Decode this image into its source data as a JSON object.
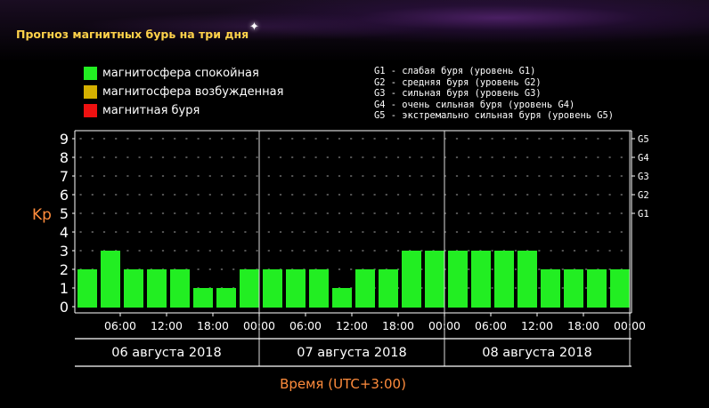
{
  "page": {
    "title": "Прогноз магнитных бурь на три дня",
    "legend": [
      {
        "label": "магнитосфера спокойная",
        "color": "#22ee22"
      },
      {
        "label": "магнитосфера возбужденная",
        "color": "#d4b000"
      },
      {
        "label": "магнитная буря",
        "color": "#ee1111"
      }
    ],
    "g_legend": [
      "G1 - слабая буря (уровень G1)",
      "G2 - средняя буря (уровень G2)",
      "G3 - сильная буря (уровень G3)",
      "G4 - очень сильная буря (уровень G4)",
      "G5 - экстремально сильная буря (уровень G5)"
    ],
    "sparkle_icon": "star-sparkle-icon"
  },
  "chart_data": {
    "type": "bar",
    "ylabel": "Kp",
    "xlabel": "Время (UTC+3:00)",
    "ylim": [
      0,
      9
    ],
    "yticks": [
      "0",
      "1",
      "2",
      "3",
      "4",
      "5",
      "6",
      "7",
      "8",
      "9"
    ],
    "right_ticks": [
      {
        "level": 5,
        "label": "G1"
      },
      {
        "level": 6,
        "label": "G2"
      },
      {
        "level": 7,
        "label": "G3"
      },
      {
        "level": 8,
        "label": "G4"
      },
      {
        "level": 9,
        "label": "G5"
      }
    ],
    "x_tick_labels": [
      "06:00",
      "12:00",
      "18:00",
      "00:00",
      "06:00",
      "12:00",
      "18:00",
      "00:00",
      "06:00",
      "12:00",
      "18:00",
      "00:00"
    ],
    "day_labels": [
      "06 августа 2018",
      "07 августа 2018",
      "08 августа 2018"
    ],
    "values": [
      2,
      3,
      2,
      2,
      2,
      1,
      1,
      2,
      2,
      2,
      2,
      1,
      2,
      2,
      3,
      3,
      3,
      3,
      3,
      3,
      2,
      2,
      2,
      2
    ],
    "bar_color": "#22ee22",
    "grid": "dotted"
  }
}
